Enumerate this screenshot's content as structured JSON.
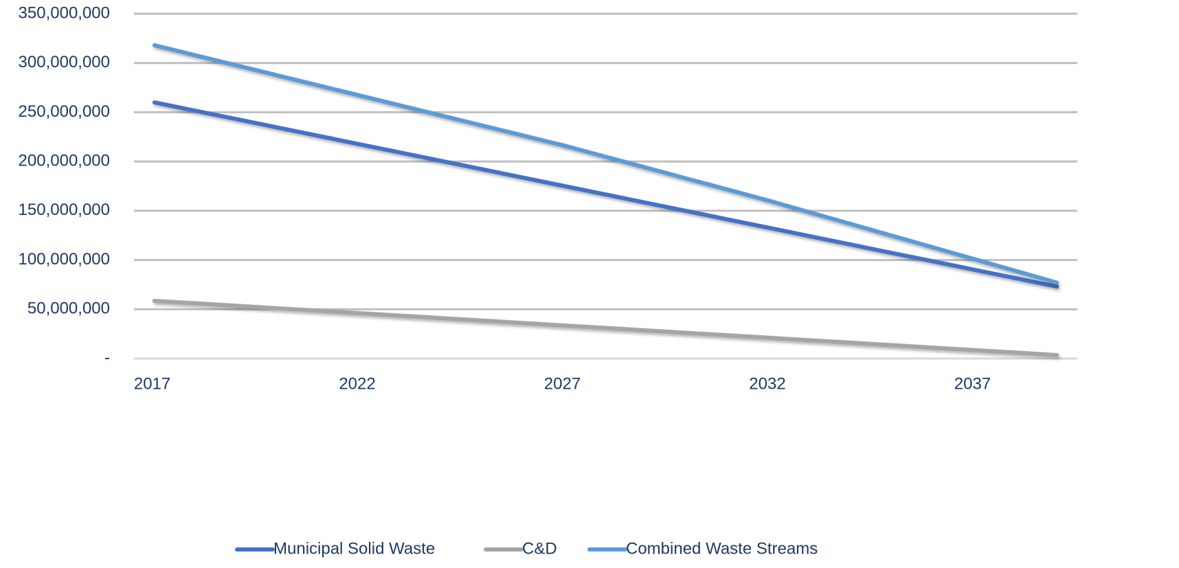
{
  "chart_data": {
    "type": "line",
    "categories": [
      2017,
      null,
      null,
      null,
      null,
      2022,
      null,
      null,
      null,
      null,
      2027,
      null,
      null,
      null,
      null,
      2032,
      null,
      null,
      null,
      null,
      2037,
      null,
      null
    ],
    "series": [
      {
        "name": "Municipal Solid Waste",
        "color": "#4472c4",
        "values": [
          260000000,
          251500000,
          243000000,
          234500000,
          226000000,
          217500000,
          209000000,
          200500000,
          192000000,
          183500000,
          175000000,
          166500000,
          158000000,
          149500000,
          141000000,
          132500000,
          124000000,
          115500000,
          107000000,
          98500000,
          90000000,
          81500000,
          73000000
        ]
      },
      {
        "name": "C&D",
        "color": "#a5a5a5",
        "values": [
          58500000,
          56000000,
          53500000,
          51000000,
          48500000,
          46000000,
          43500000,
          41000000,
          38500000,
          36000000,
          33500000,
          31000000,
          28500000,
          26000000,
          23500000,
          21000000,
          18500000,
          16000000,
          13500000,
          11000000,
          8500000,
          6000000,
          3500000
        ]
      },
      {
        "name": "Combined Waste Streams",
        "color": "#5b9bd5",
        "values": [
          318000000,
          307800000,
          297600000,
          287400000,
          277200000,
          267000000,
          256800000,
          246600000,
          236400000,
          226200000,
          216000000,
          204800000,
          193600000,
          182400000,
          171200000,
          160000000,
          148100000,
          136300000,
          124400000,
          112600000,
          100700000,
          88900000,
          77000000
        ]
      }
    ],
    "ylim": [
      0,
      350000000
    ],
    "yticks": [
      {
        "value": 0,
        "label": "-"
      },
      {
        "value": 50000000,
        "label": "50,000,000"
      },
      {
        "value": 100000000,
        "label": "100,000,000"
      },
      {
        "value": 150000000,
        "label": "150,000,000"
      },
      {
        "value": 200000000,
        "label": "200,000,000"
      },
      {
        "value": 250000000,
        "label": "250,000,000"
      },
      {
        "value": 300000000,
        "label": "300,000,000"
      },
      {
        "value": 350000000,
        "label": "350,000,000"
      }
    ],
    "grid": true,
    "legend": "bottom"
  }
}
